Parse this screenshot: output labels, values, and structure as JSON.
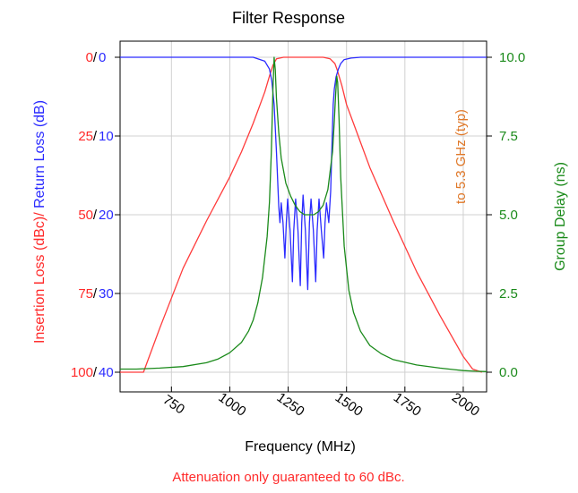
{
  "chart_data": {
    "type": "line",
    "title": "Filter Response",
    "xlabel": "Frequency (MHz)",
    "xlim": [
      530,
      2100
    ],
    "xticks": [
      750,
      1000,
      1250,
      1500,
      1750,
      2000
    ],
    "xtick_labels": [
      "750",
      "1000",
      "1250",
      "1500",
      "1750",
      "2000"
    ],
    "left_axis": {
      "label_parts": [
        {
          "text": "Insertion Loss (dBc)",
          "color": "#ff2a2a"
        },
        {
          "text": "/ ",
          "color": "#ff2a2a"
        },
        {
          "text": "Return Loss (dB)",
          "color": "#2a2aff"
        }
      ],
      "insertion_ticks": [
        "0",
        "25",
        "50",
        "75",
        "100"
      ],
      "return_ticks": [
        "0",
        "10",
        "20",
        "30",
        "40"
      ],
      "insertion_lim": [
        0,
        100
      ],
      "return_lim": [
        0,
        40
      ],
      "reversed": true
    },
    "right_axis": {
      "label": "Group Delay (ns)",
      "ticks": [
        "10.0",
        "7.5",
        "5.0",
        "2.5",
        "0.0"
      ],
      "lim": [
        0,
        10
      ]
    },
    "annotation": "to 5.3 GHz (typ)",
    "footnote": "Attenuation only guaranteed to 60 dBc.",
    "grid": true,
    "series": [
      {
        "name": "Insertion Loss (dBc)",
        "axis": "insertion",
        "color": "#ff3b3b",
        "x": [
          530,
          630,
          700,
          800,
          900,
          1000,
          1050,
          1100,
          1130,
          1150,
          1170,
          1185,
          1200,
          1230,
          1300,
          1400,
          1430,
          1450,
          1460,
          1480,
          1500,
          1550,
          1600,
          1700,
          1800,
          1900,
          2000,
          2040,
          2080
        ],
        "values": [
          100,
          100,
          86,
          67,
          52,
          38,
          30,
          21,
          15,
          11,
          6,
          2.5,
          0.5,
          0,
          0,
          0,
          0.5,
          2,
          4,
          9,
          15,
          25,
          35,
          52,
          68,
          82,
          95,
          99,
          100
        ]
      },
      {
        "name": "Return Loss (dB)",
        "axis": "return",
        "color": "#2a2aff",
        "x": [
          530,
          1100,
          1150,
          1170,
          1180,
          1190,
          1200,
          1210,
          1215,
          1220,
          1228,
          1236,
          1242,
          1248,
          1258,
          1268,
          1274,
          1282,
          1292,
          1302,
          1308,
          1314,
          1324,
          1334,
          1341,
          1348,
          1358,
          1368,
          1374,
          1382,
          1392,
          1402,
          1408,
          1414,
          1424,
          1432,
          1438,
          1443,
          1448,
          1455,
          1465,
          1475,
          1490,
          1520,
          1560,
          2100
        ],
        "values": [
          0,
          0,
          0.5,
          1.5,
          3,
          6,
          12,
          19,
          21,
          18.5,
          21,
          25.5,
          21,
          18,
          22,
          28.5,
          22,
          18,
          22,
          29,
          21,
          17.5,
          22,
          29.5,
          21,
          18,
          22,
          28.5,
          22,
          18,
          22,
          25.5,
          21,
          18.5,
          21,
          17,
          11,
          6,
          4,
          2.5,
          1.5,
          0.8,
          0.3,
          0.1,
          0,
          0
        ]
      },
      {
        "name": "Group Delay (ns)",
        "axis": "delay",
        "color": "#1a8a1a",
        "x": [
          530,
          600,
          700,
          800,
          900,
          950,
          1000,
          1050,
          1080,
          1100,
          1120,
          1140,
          1160,
          1170,
          1178,
          1185,
          1190,
          1195,
          1200,
          1210,
          1220,
          1240,
          1260,
          1280,
          1300,
          1320,
          1340,
          1360,
          1380,
          1400,
          1420,
          1440,
          1448,
          1453,
          1458,
          1462,
          1468,
          1475,
          1490,
          1510,
          1530,
          1560,
          1600,
          1650,
          1700,
          1800,
          1900,
          2000,
          2050,
          2100
        ],
        "values": [
          0.1,
          0.1,
          0.13,
          0.18,
          0.3,
          0.42,
          0.62,
          0.95,
          1.3,
          1.65,
          2.2,
          3.0,
          4.3,
          5.4,
          7.0,
          9.0,
          10.0,
          9.6,
          8.7,
          7.6,
          6.8,
          6.0,
          5.6,
          5.3,
          5.1,
          5.0,
          5.0,
          5.0,
          5.1,
          5.3,
          5.8,
          7.0,
          8.0,
          8.8,
          9.4,
          9.2,
          8.0,
          6.2,
          4.0,
          2.6,
          1.9,
          1.3,
          0.85,
          0.58,
          0.4,
          0.23,
          0.13,
          0.05,
          0.03,
          0.02
        ]
      }
    ]
  },
  "colors": {
    "insertion": "#ff2a2a",
    "return": "#2a2aff",
    "delay": "#1a8a1a",
    "annotation": "#e07828",
    "grid": "#d0d0d0",
    "axis": "#000000"
  }
}
